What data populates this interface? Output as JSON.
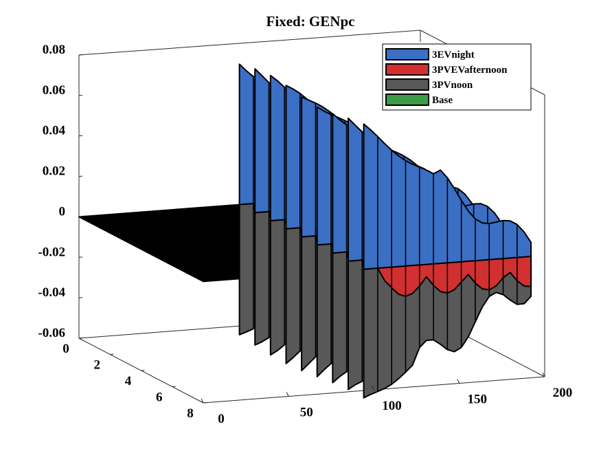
{
  "chart_data": {
    "type": "surface3d",
    "title": "Fixed: GENpc",
    "xlabel": "",
    "ylabel": "",
    "zlabel": "",
    "x_ticks": [
      "0",
      "50",
      "100",
      "150",
      "200"
    ],
    "y_ticks": [
      "0",
      "2",
      "4",
      "6",
      "8"
    ],
    "z_ticks": [
      "0.08",
      "0.06",
      "0.04",
      "0.02",
      "0",
      "-0.02",
      "-0.04",
      "-0.06"
    ],
    "xlim": [
      0,
      200
    ],
    "ylim": [
      0,
      8
    ],
    "zlim": [
      -0.06,
      0.08
    ],
    "legend_position": "top-right",
    "series": [
      {
        "name": "3EVnight",
        "color": "#3a6fc4",
        "x_range": [
          94,
          192
        ],
        "y": [
          0,
          1,
          2,
          3,
          4,
          5,
          6,
          7,
          8
        ],
        "peak_near_x100": 0.07,
        "decays_to": 0.003
      },
      {
        "name": "3PVEVafternoon",
        "color": "#d23030",
        "x_range": [
          94,
          192
        ],
        "y": [
          0,
          1,
          2,
          3,
          4,
          5,
          6,
          7,
          8
        ],
        "min_value": -0.015
      },
      {
        "name": "3PVnoon",
        "color": "#585858",
        "x_range": [
          94,
          192
        ],
        "y": [
          0,
          1,
          2,
          3,
          4,
          5,
          6,
          7,
          8
        ],
        "trough_near_x100": -0.065,
        "recovers_to": -0.01
      },
      {
        "name": "Base",
        "color": "#3c9b46",
        "x_range": [
          0,
          94
        ],
        "y": [
          0,
          1,
          2,
          3,
          4,
          5,
          6,
          7,
          8
        ],
        "value": 0
      }
    ]
  }
}
